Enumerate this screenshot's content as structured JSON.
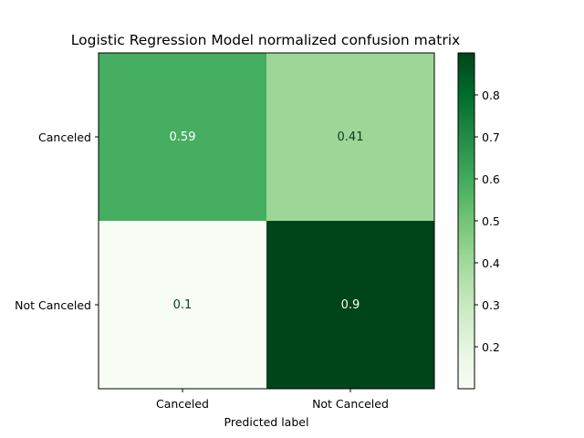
{
  "chart_data": {
    "type": "heatmap",
    "title": "Logistic Regression Model normalized confusion matrix",
    "xlabel": "Predicted label",
    "ylabel": "",
    "x_categories": [
      "Canceled",
      "Not Canceled"
    ],
    "y_categories": [
      "Canceled",
      "Not Canceled"
    ],
    "values": [
      [
        0.59,
        0.41
      ],
      [
        0.1,
        0.9
      ]
    ],
    "value_labels": [
      [
        "0.59",
        "0.41"
      ],
      [
        "0.1",
        "0.9"
      ]
    ],
    "colormap": "Greens",
    "colorbar": {
      "range": [
        0.1,
        0.9
      ],
      "ticks": [
        0.2,
        0.3,
        0.4,
        0.5,
        0.6,
        0.7,
        0.8
      ],
      "tick_labels": [
        "0.2",
        "0.3",
        "0.4",
        "0.5",
        "0.6",
        "0.7",
        "0.8"
      ]
    },
    "grid": false
  }
}
